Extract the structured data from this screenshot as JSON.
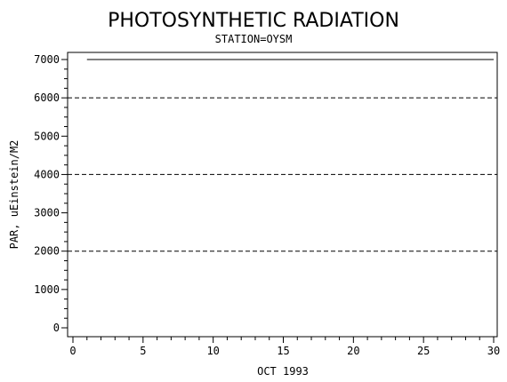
{
  "chart_data": {
    "type": "line",
    "title": "PHOTOSYNTHETIC RADIATION",
    "subtitle": "STATION=OYSM",
    "xlabel": "OCT 1993",
    "ylabel": "PAR, uEinstein/M2",
    "xlim": [
      0,
      30
    ],
    "ylim": [
      0,
      7000
    ],
    "x_ticks": [
      0,
      5,
      10,
      15,
      20,
      25,
      30
    ],
    "x_tick_labels": [
      "0",
      "5",
      "10",
      "15",
      "20",
      "25",
      "30"
    ],
    "y_ticks": [
      0,
      1000,
      2000,
      3000,
      4000,
      5000,
      6000,
      7000
    ],
    "y_tick_labels": [
      "0",
      "1000",
      "2000",
      "3000",
      "4000",
      "5000",
      "6000",
      "7000"
    ],
    "reference_lines": [
      2000,
      4000,
      6000
    ],
    "grid": false,
    "series": [
      {
        "x": [
          1,
          30
        ],
        "y": [
          7000,
          7000
        ],
        "color": "#000000"
      }
    ]
  }
}
